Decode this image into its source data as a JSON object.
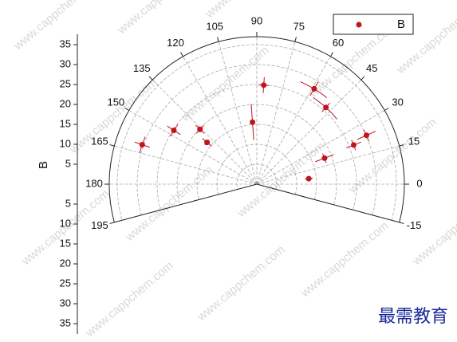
{
  "chart_data": {
    "type": "polar-scatter",
    "series": [
      {
        "name": "B",
        "color": "#c0141e",
        "theta": [
          161,
          147,
          136,
          140,
          94,
          86,
          59,
          48,
          24,
          22,
          21,
          6
        ],
        "r": [
          30.4,
          24.8,
          19.8,
          16.3,
          15.6,
          24.9,
          27.9,
          25.9,
          30.1,
          26.2,
          18.2,
          13.1
        ],
        "rerr": [
          2,
          2,
          1.5,
          1.5,
          4.5,
          2,
          2,
          1.5,
          2.5,
          2,
          2.5,
          1
        ],
        "thetaerr": [
          4,
          4,
          4,
          3,
          1,
          3,
          8,
          9,
          3,
          3,
          4,
          3
        ]
      }
    ],
    "rlabel": "B",
    "rlim": [
      0,
      37
    ],
    "rticks": [
      5,
      10,
      15,
      20,
      25,
      30,
      35
    ],
    "thetalim": [
      -15,
      195
    ],
    "thetaticks": [
      -15,
      0,
      15,
      30,
      45,
      60,
      75,
      90,
      105,
      120,
      135,
      150,
      165,
      180,
      195
    ],
    "grid": true,
    "legend": "upper right",
    "watermark": "www.cappchem.com",
    "brand": "最需教育"
  }
}
